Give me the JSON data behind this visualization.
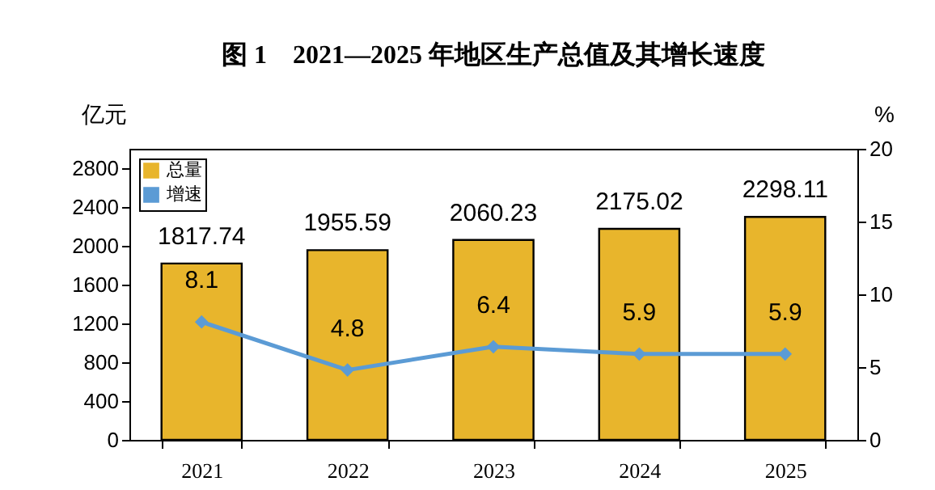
{
  "chart_data": {
    "type": "bar",
    "title": "图 1　2021—2025 年地区生产总值及其增长速度",
    "ylabel": "亿元",
    "y2label": "%",
    "categories": [
      "2021",
      "2022",
      "2023",
      "2024",
      "2025"
    ],
    "series": [
      {
        "name": "总量",
        "color": "#e8b52c",
        "values": [
          1817.74,
          1955.59,
          2060.23,
          2175.02,
          2298.11
        ]
      },
      {
        "name": "增速",
        "type": "line",
        "axis": "y2",
        "color": "#5b9bd5",
        "values": [
          8.1,
          4.8,
          6.4,
          5.9,
          5.9
        ]
      }
    ],
    "ylim": [
      0,
      3000
    ],
    "yticks": [
      0,
      400,
      800,
      1200,
      1600,
      2000,
      2400,
      2800
    ],
    "y2lim": [
      0,
      20
    ],
    "y2ticks": [
      0,
      5,
      10,
      15,
      20
    ],
    "data_labels": true,
    "legend": "top left",
    "grid": false,
    "marker": "diamond"
  }
}
